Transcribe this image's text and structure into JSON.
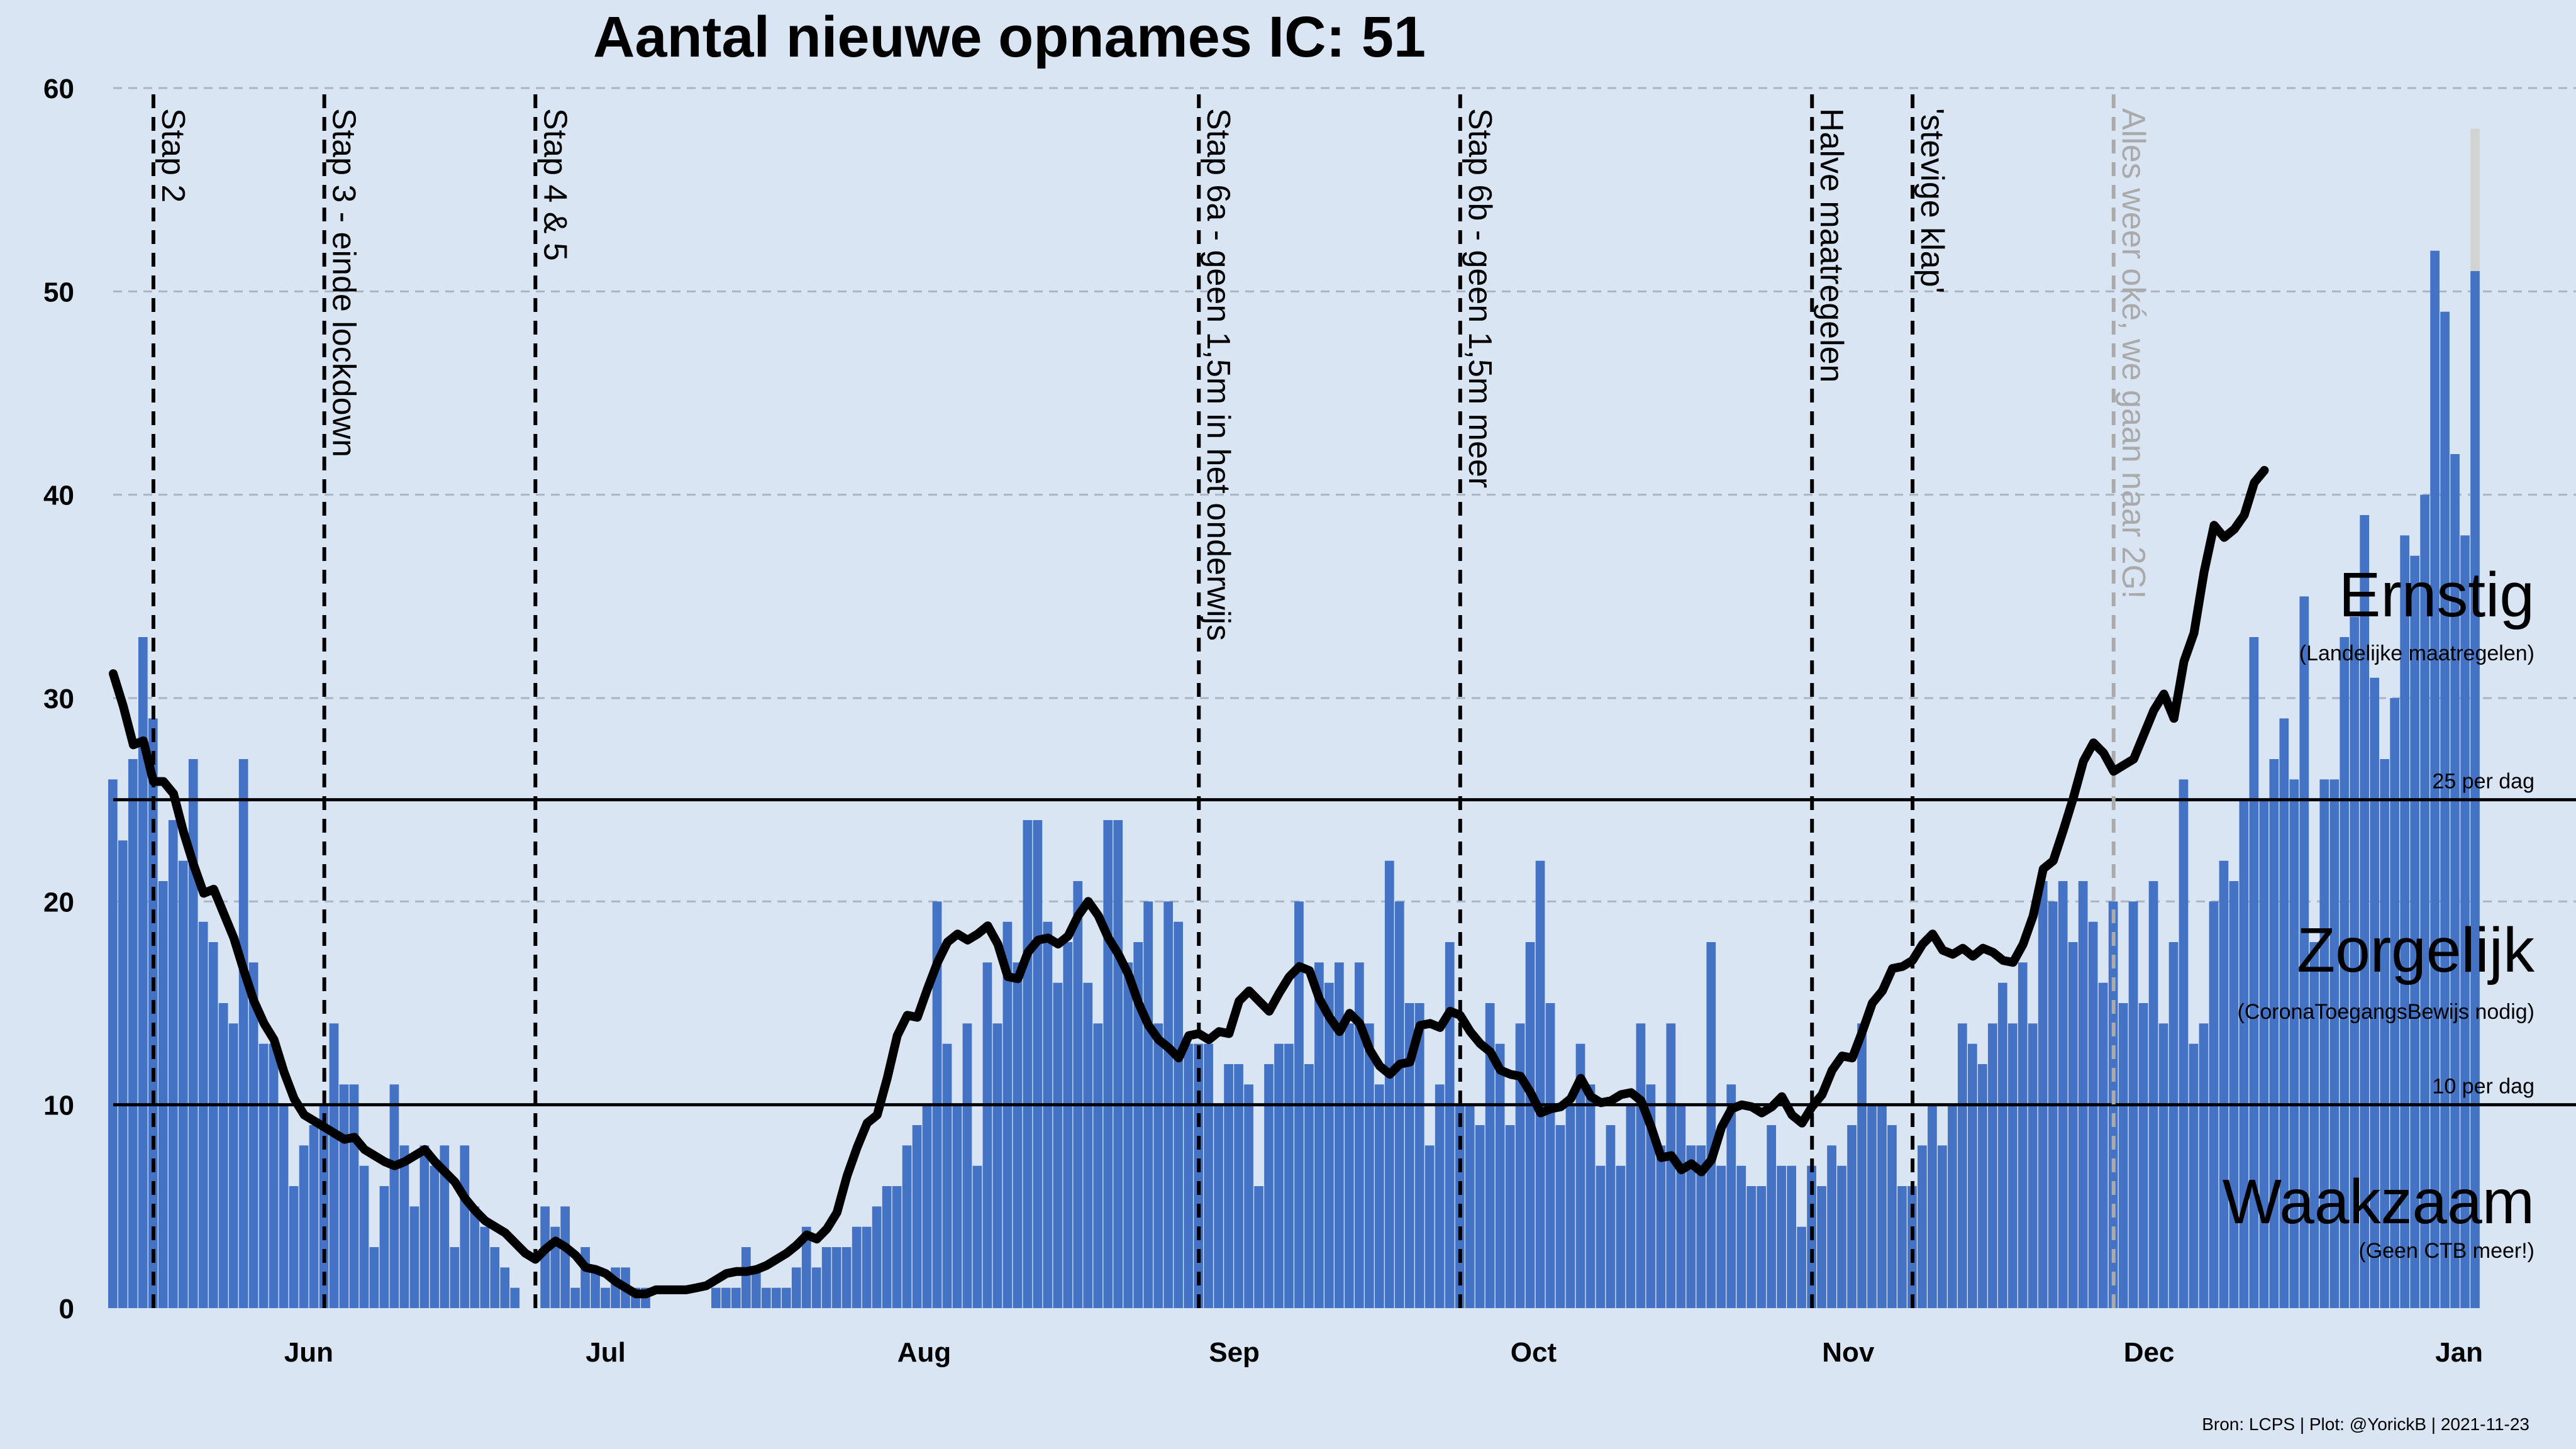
{
  "chart_data": {
    "type": "bar",
    "title": "Aantal nieuwe opnames IC:  51",
    "xlabel": "",
    "ylabel": "",
    "ylim": [
      0,
      60
    ],
    "xlim": [
      "2021-05-15",
      "2022-01-15"
    ],
    "yticks": [
      0,
      10,
      20,
      30,
      40,
      50,
      60
    ],
    "grid": true,
    "x_tick_labels": [
      {
        "date": "2021-06-01",
        "label": "Jun"
      },
      {
        "date": "2021-07-01",
        "label": "Jul"
      },
      {
        "date": "2021-08-01",
        "label": "Aug"
      },
      {
        "date": "2021-09-01",
        "label": "Sep"
      },
      {
        "date": "2021-10-01",
        "label": "Oct"
      },
      {
        "date": "2021-11-01",
        "label": "Nov"
      },
      {
        "date": "2021-12-01",
        "label": "Dec"
      },
      {
        "date": "2022-01-01",
        "label": "Jan"
      }
    ],
    "bars": {
      "start_date": "2021-05-15",
      "colors": {
        "normal": "#4472c4",
        "incomplete": "#d3d3d3"
      },
      "values": [
        26,
        23,
        27,
        33,
        29,
        21,
        24,
        22,
        27,
        19,
        18,
        15,
        14,
        27,
        17,
        13,
        13,
        10,
        6,
        8,
        9,
        10,
        14,
        11,
        11,
        7,
        3,
        6,
        11,
        8,
        5,
        8,
        7,
        8,
        3,
        8,
        5,
        4,
        3,
        2,
        1,
        0,
        0,
        5,
        4,
        5,
        1,
        3,
        2,
        1,
        2,
        2,
        1,
        1,
        0,
        0,
        0,
        0,
        0,
        0,
        1,
        1,
        1,
        3,
        2,
        1,
        1,
        1,
        2,
        4,
        2,
        3,
        3,
        3,
        4,
        4,
        5,
        6,
        6,
        8,
        9,
        10,
        20,
        13,
        10,
        14,
        7,
        17,
        14,
        19,
        17,
        24,
        24,
        19,
        16,
        18,
        21,
        16,
        14,
        24,
        24,
        17,
        18,
        20,
        14,
        20,
        19,
        13,
        13,
        13,
        10,
        12,
        12,
        11,
        6,
        12,
        13,
        13,
        20,
        12,
        17,
        16,
        17,
        14,
        17,
        14,
        11,
        22,
        20,
        15,
        15,
        8,
        11,
        18,
        10,
        10,
        9,
        15,
        13,
        9,
        14,
        18,
        22,
        15,
        9,
        10,
        13,
        11,
        7,
        9,
        7,
        10,
        14,
        11,
        8,
        14,
        10,
        8,
        8,
        18,
        7,
        11,
        7,
        6,
        6,
        9,
        7,
        7,
        4,
        7,
        6,
        8,
        7,
        9,
        14,
        10,
        10,
        9,
        6,
        6,
        8,
        10,
        8,
        10,
        14,
        13,
        12,
        14,
        16,
        14,
        17,
        14,
        21,
        20,
        21,
        18,
        21,
        19,
        16,
        20,
        15,
        20,
        15,
        21,
        14,
        18,
        26,
        13,
        14,
        20,
        22,
        21,
        25,
        33,
        25,
        27,
        29,
        26,
        35,
        18,
        26,
        26,
        33,
        34,
        39,
        31,
        27,
        30,
        38,
        37,
        40,
        52,
        49,
        42,
        38,
        51
      ],
      "last_bar_total": 58
    },
    "trend_line": {
      "name": "",
      "start_date": "2021-05-15",
      "values": [
        31.2,
        29.6,
        27.7,
        27.9,
        25.9,
        25.9,
        25.3,
        23.4,
        21.8,
        20.4,
        20.6,
        19.4,
        18.2,
        16.6,
        15.1,
        14.0,
        13.2,
        11.6,
        10.3,
        9.5,
        9.2,
        8.9,
        8.6,
        8.3,
        8.4,
        7.8,
        7.5,
        7.2,
        7.0,
        7.2,
        7.5,
        7.8,
        7.2,
        6.7,
        6.2,
        5.4,
        4.8,
        4.3,
        4.0,
        3.7,
        3.2,
        2.7,
        2.4,
        2.9,
        3.3,
        3.0,
        2.6,
        2.0,
        1.9,
        1.7,
        1.3,
        1.0,
        0.7,
        0.7,
        0.9,
        0.9,
        0.9,
        0.9,
        1.0,
        1.1,
        1.4,
        1.7,
        1.8,
        1.8,
        1.9,
        2.1,
        2.4,
        2.7,
        3.1,
        3.6,
        3.4,
        3.9,
        4.7,
        6.5,
        7.9,
        9.1,
        9.5,
        11.3,
        13.4,
        14.4,
        14.3,
        15.7,
        17.0,
        18.0,
        18.4,
        18.1,
        18.4,
        18.8,
        17.9,
        16.3,
        16.2,
        17.5,
        18.1,
        18.2,
        17.9,
        18.3,
        19.3,
        20.0,
        19.3,
        18.2,
        17.4,
        16.4,
        15.0,
        13.9,
        13.2,
        12.8,
        12.3,
        13.4,
        13.5,
        13.2,
        13.6,
        13.5,
        15.1,
        15.6,
        15.1,
        14.6,
        15.5,
        16.3,
        16.8,
        16.6,
        15.2,
        14.3,
        13.6,
        14.5,
        14.0,
        12.7,
        11.9,
        11.5,
        12.0,
        12.1,
        13.9,
        14.0,
        13.8,
        14.6,
        14.4,
        13.6,
        13.0,
        12.6,
        11.7,
        11.5,
        11.4,
        10.6,
        9.6,
        9.8,
        9.9,
        10.3,
        11.3,
        10.4,
        10.1,
        10.2,
        10.5,
        10.6,
        10.2,
        8.9,
        7.4,
        7.5,
        6.8,
        7.1,
        6.7,
        7.3,
        8.9,
        9.8,
        10.0,
        9.9,
        9.6,
        9.9,
        10.4,
        9.5,
        9.1,
        9.9,
        10.5,
        11.7,
        12.4,
        12.3,
        13.6,
        15.0,
        15.6,
        16.7,
        16.8,
        17.1,
        17.9,
        18.4,
        17.6,
        17.4,
        17.7,
        17.3,
        17.7,
        17.5,
        17.1,
        17.0,
        17.9,
        19.3,
        21.6,
        22.0,
        23.5,
        25.1,
        26.9,
        27.8,
        27.3,
        26.4,
        26.7,
        27.0,
        28.2,
        29.4,
        30.2,
        29.0,
        31.8,
        33.2,
        36.2,
        38.5,
        37.9,
        38.3,
        39.0,
        40.6,
        41.2
      ]
    },
    "reference_lines": [
      {
        "value": 25,
        "label": "25 per dag"
      },
      {
        "value": 10,
        "label": "10 per dag"
      }
    ],
    "zones": [
      {
        "label": "Ernstig",
        "sub": "(Landelijke maatregelen)"
      },
      {
        "label": "Zorgelijk",
        "sub": "(CoronaToegangsBewijs nodig)"
      },
      {
        "label": "Waakzaam",
        "sub": "(Geen CTB meer!)"
      }
    ],
    "events": [
      {
        "date": "2021-05-19",
        "label": "Stap 2",
        "color": "#000000"
      },
      {
        "date": "2021-06-05",
        "label": "Stap 3 - einde lockdown",
        "color": "#000000"
      },
      {
        "date": "2021-06-26",
        "label": "Stap 4 & 5",
        "color": "#000000"
      },
      {
        "date": "2021-08-31",
        "label": "Stap 6a - geen 1,5m in het onderwijs",
        "color": "#000000"
      },
      {
        "date": "2021-09-26",
        "label": "Stap 6b - geen 1,5m meer",
        "color": "#000000"
      },
      {
        "date": "2021-10-31",
        "label": "Halve maatregelen",
        "color": "#000000"
      },
      {
        "date": "2021-11-10",
        "label": "'stevige klap'",
        "color": "#000000"
      },
      {
        "date": "2021-11-30",
        "label": "Alles weer oké, we gaan naar 2G!",
        "color": "#aaaaaa"
      }
    ],
    "source": "Bron: LCPS | Plot: @YorickB |  2021-11-23"
  }
}
